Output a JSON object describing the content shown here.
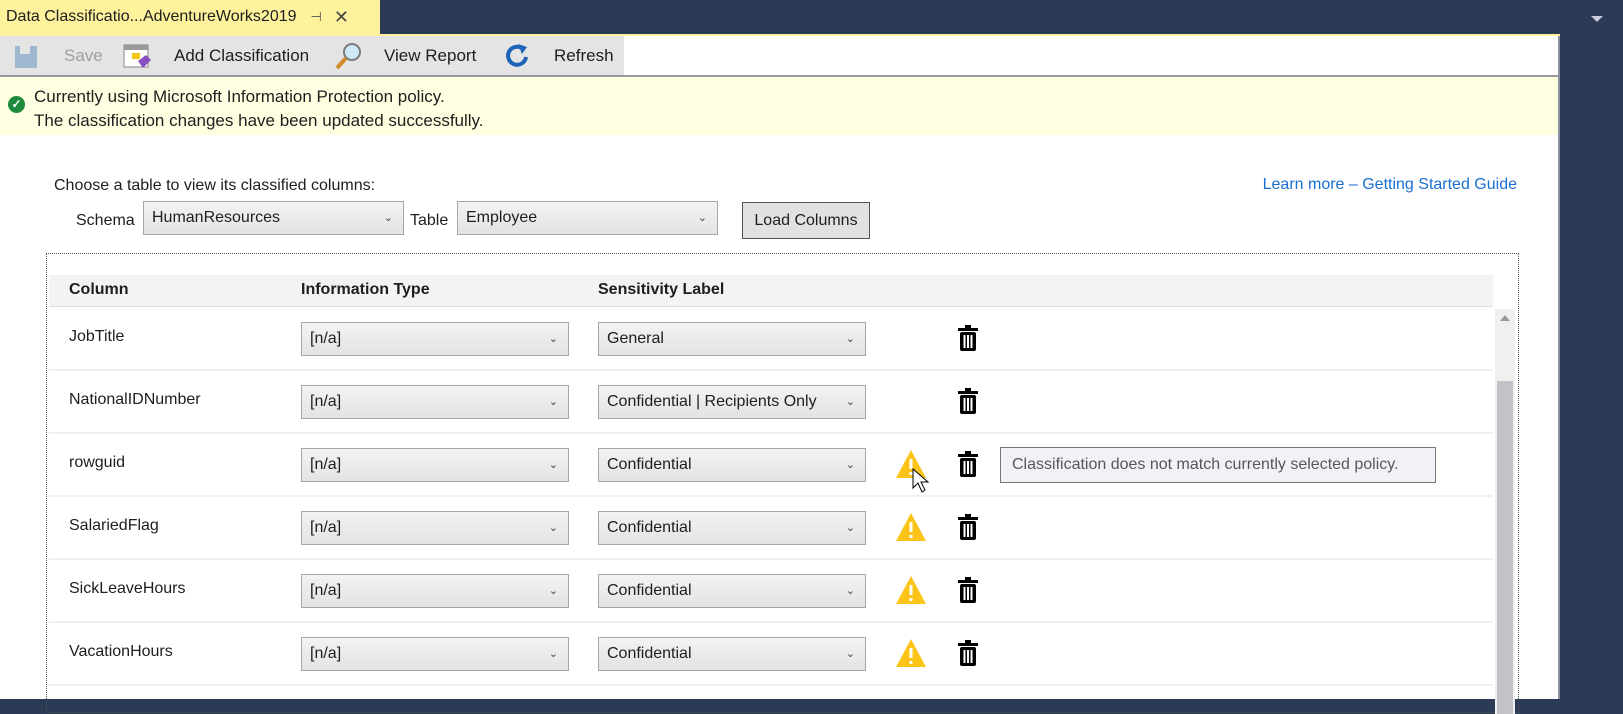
{
  "tab": {
    "title": "Data Classificatio...AdventureWorks2019",
    "pin": "⊣",
    "close": "✕"
  },
  "toolbar": {
    "save": "Save",
    "add_classification": "Add Classification",
    "view_report": "View Report",
    "refresh": "Refresh"
  },
  "info": {
    "line1": "Currently using Microsoft Information Protection policy.",
    "line2": "The classification changes have been updated successfully."
  },
  "chooser": {
    "prompt": "Choose a table to view its classified columns:",
    "schema_label": "Schema",
    "schema_value": "HumanResources",
    "table_label": "Table",
    "table_value": "Employee",
    "load_button": "Load Columns",
    "learn_more": "Learn more – Getting Started Guide"
  },
  "grid": {
    "headers": [
      "Column",
      "Information Type",
      "Sensitivity Label"
    ],
    "rows": [
      {
        "column": "JobTitle",
        "info_type": "[n/a]",
        "label": "General",
        "warning": false
      },
      {
        "column": "NationalIDNumber",
        "info_type": "[n/a]",
        "label": "Confidential | Recipients Only",
        "warning": false
      },
      {
        "column": "rowguid",
        "info_type": "[n/a]",
        "label": "Confidential",
        "warning": true
      },
      {
        "column": "SalariedFlag",
        "info_type": "[n/a]",
        "label": "Confidential",
        "warning": true
      },
      {
        "column": "SickLeaveHours",
        "info_type": "[n/a]",
        "label": "Confidential",
        "warning": true
      },
      {
        "column": "VacationHours",
        "info_type": "[n/a]",
        "label": "Confidential",
        "warning": true
      }
    ]
  },
  "tooltip": "Classification does not match currently selected policy.",
  "colors": {
    "tab": "#fff29d",
    "titlebar": "#2b3a55",
    "info_bg": "#ffffe1",
    "link": "#1a6fd1",
    "warning": "#fcc419"
  }
}
